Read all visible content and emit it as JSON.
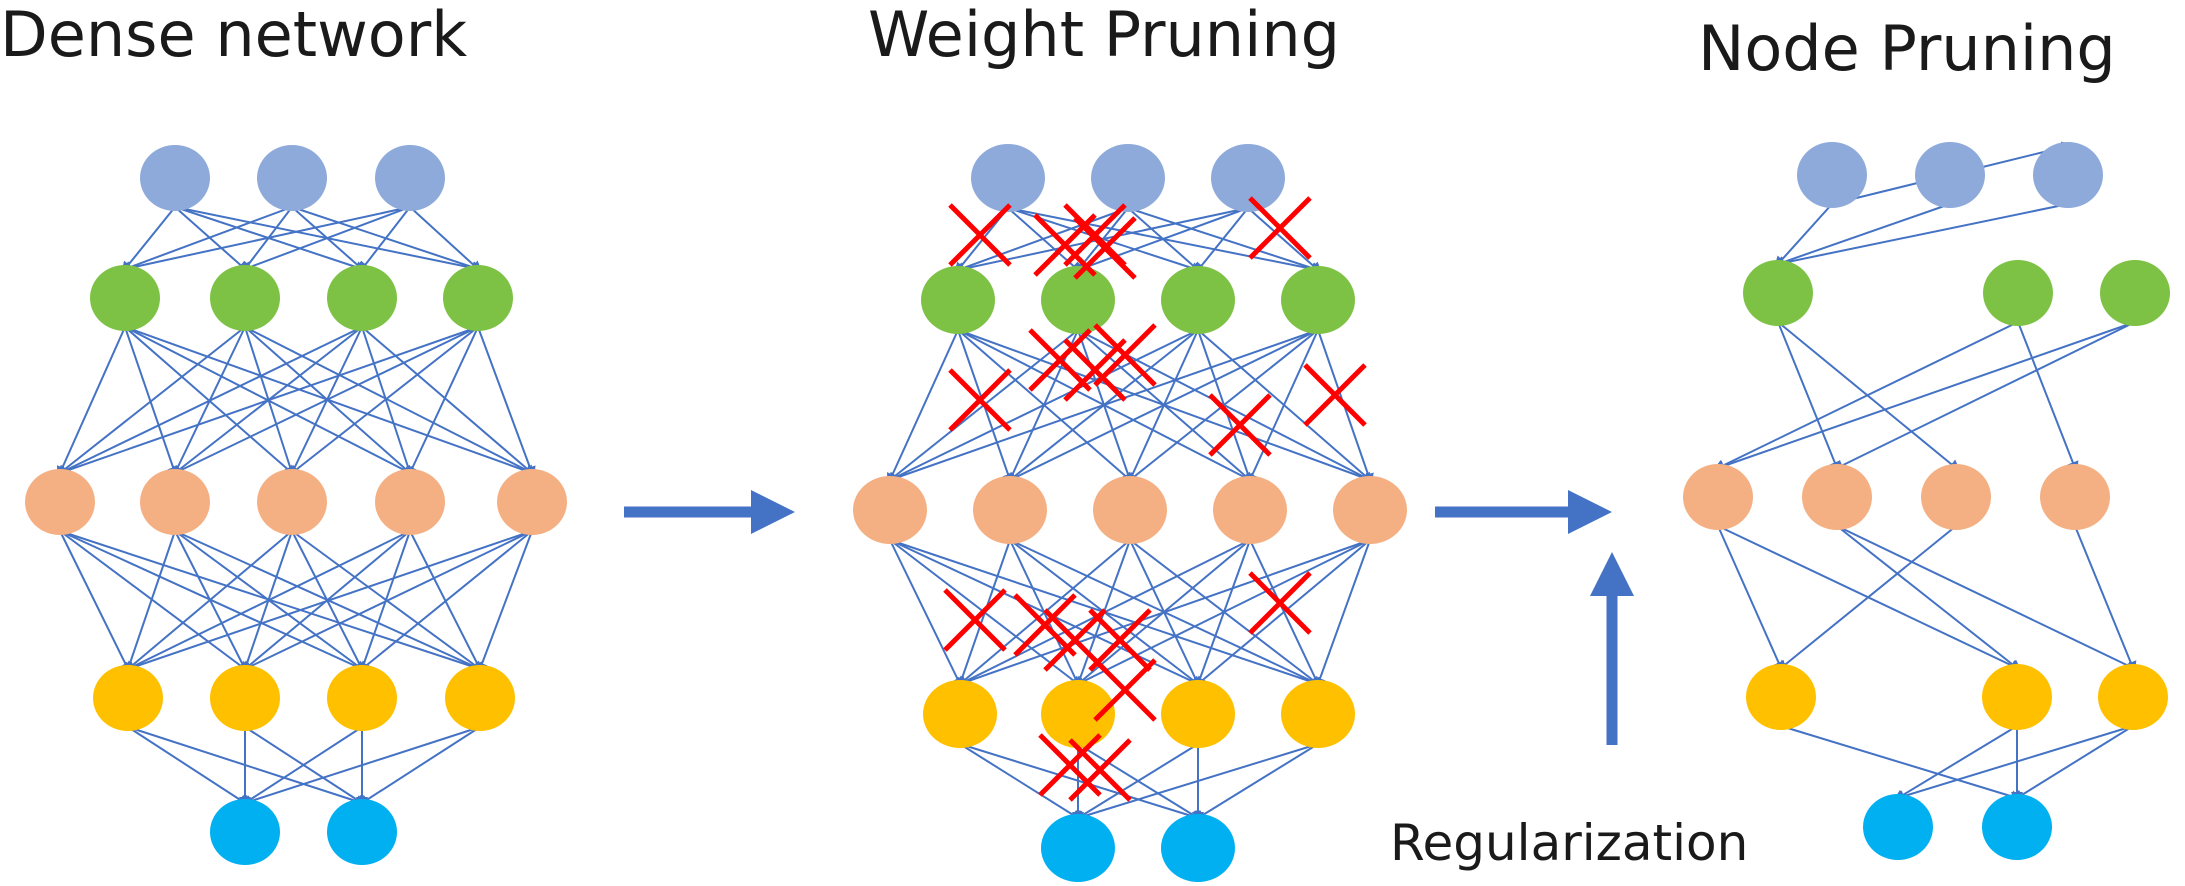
{
  "titles": {
    "dense": "Dense network",
    "weight": "Weight Pruning",
    "node": "Node Pruning"
  },
  "caption": "Regularization",
  "colors": {
    "edge": "#4472c4",
    "arrow": "#4472c4",
    "cross": "#ff0000",
    "layer_colors": [
      "#8eaadb",
      "#7dc244",
      "#f4b083",
      "#ffc000",
      "#00b0f0"
    ]
  },
  "layer_sizes": [
    3,
    4,
    5,
    4,
    2
  ]
}
